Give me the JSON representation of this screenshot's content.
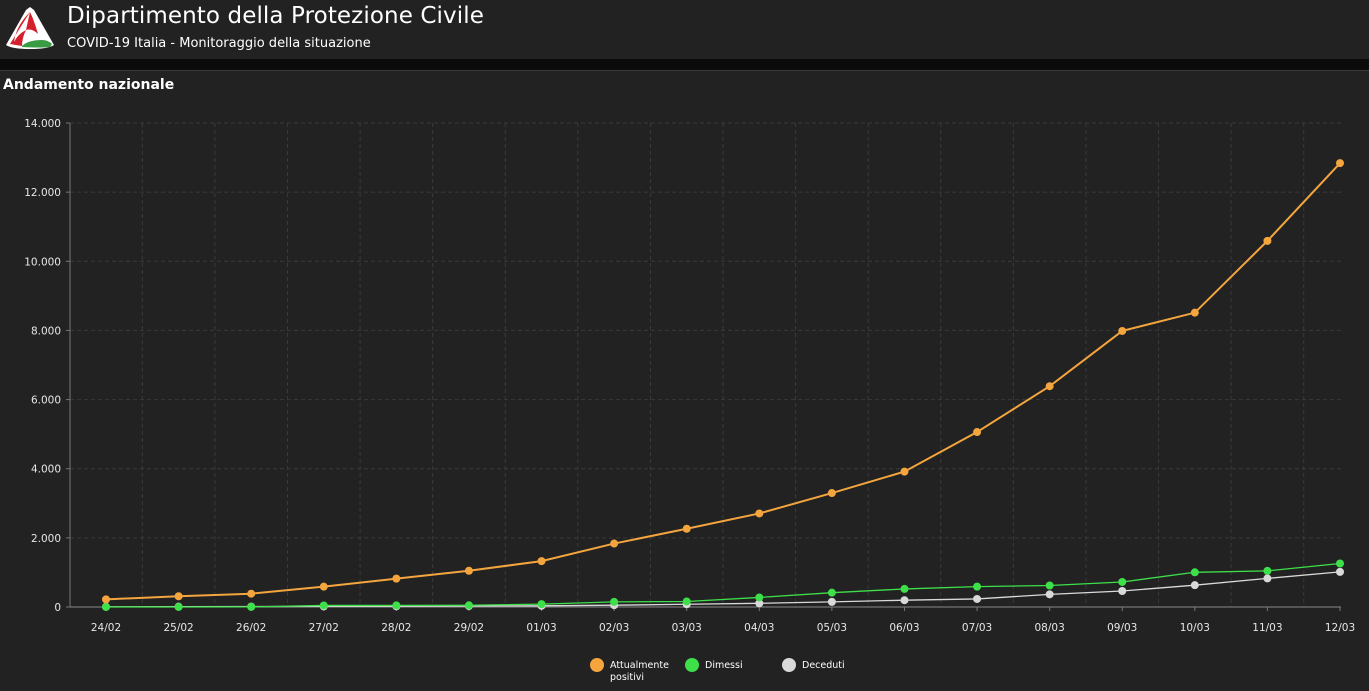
{
  "header": {
    "title": "Dipartimento della Protezione Civile",
    "subtitle": "COVID-19 Italia - Monitoraggio della situazione",
    "logo_icon": "protezione-civile-logo"
  },
  "panel": {
    "title": "Andamento nazionale"
  },
  "legend": {
    "items": [
      {
        "label_line1": "Attualmente",
        "label_line2": "positivi",
        "color": "#f4a53e"
      },
      {
        "label_line1": "Dimessi",
        "label_line2": "",
        "color": "#3ee04a"
      },
      {
        "label_line1": "Deceduti",
        "label_line2": "",
        "color": "#d9d9d9"
      }
    ]
  },
  "chart_data": {
    "type": "line",
    "title": "",
    "xlabel": "",
    "ylabel": "",
    "x": [
      "24/02",
      "25/02",
      "26/02",
      "27/02",
      "28/02",
      "29/02",
      "01/03",
      "02/03",
      "03/03",
      "04/03",
      "05/03",
      "06/03",
      "07/03",
      "08/03",
      "09/03",
      "10/03",
      "11/03",
      "12/03"
    ],
    "ylim": [
      0,
      14000
    ],
    "yticks": [
      "0",
      "2.000",
      "4.000",
      "6.000",
      "8.000",
      "10.000",
      "12.000",
      "14.000"
    ],
    "grid": true,
    "legend_position": "bottom",
    "series": [
      {
        "name": "Attualmente positivi",
        "color": "#f4a53e",
        "values": [
          221,
          311,
          385,
          588,
          821,
          1049,
          1327,
          1835,
          2263,
          2706,
          3296,
          3916,
          5061,
          6387,
          7985,
          8514,
          10590,
          12839
        ]
      },
      {
        "name": "Dimessi",
        "color": "#3ee04a",
        "values": [
          1,
          1,
          3,
          45,
          46,
          50,
          83,
          149,
          160,
          276,
          414,
          523,
          589,
          622,
          724,
          1004,
          1045,
          1258
        ]
      },
      {
        "name": "Deceduti",
        "color": "#d9d9d9",
        "values": [
          7,
          10,
          12,
          17,
          21,
          29,
          34,
          52,
          79,
          107,
          148,
          197,
          233,
          366,
          463,
          631,
          827,
          1016
        ]
      }
    ]
  }
}
